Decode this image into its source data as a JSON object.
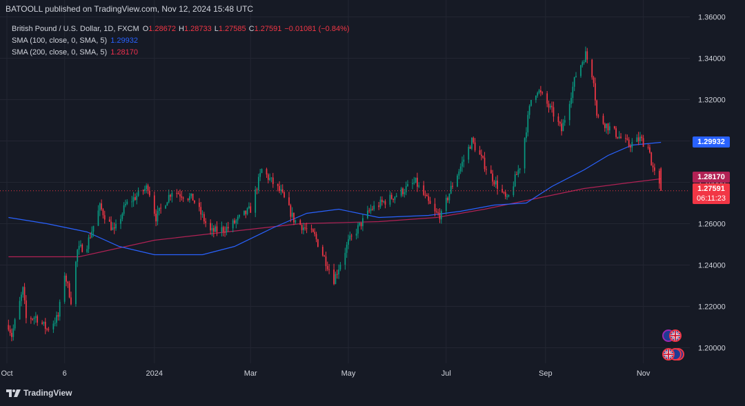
{
  "header": {
    "published": "BATOOLL published on TradingView.com, Nov 12, 2024 15:48 UTC"
  },
  "legend": {
    "symbol": "British Pound / U.S. Dollar, 1D, FXCM",
    "ohlc": [
      {
        "key": "O",
        "value": "1.28672"
      },
      {
        "key": "H",
        "value": "1.28733"
      },
      {
        "key": "L",
        "value": "1.27585"
      },
      {
        "key": "C",
        "value": "1.27591"
      }
    ],
    "change": "−0.01081 (−0.84%)",
    "sma100_label": "SMA (100, close, 0, SMA, 5)",
    "sma100_value": "1.29932",
    "sma200_label": "SMA (200, close, 0, SMA, 5)",
    "sma200_value": "1.28170"
  },
  "price_labels": {
    "sma100": "1.29932",
    "sma200": "1.28170",
    "last": "1.27591",
    "countdown": "06:11:23"
  },
  "footer": {
    "brand": "TradingView"
  },
  "icons": [
    "uk-flag-icon",
    "tradingview-logo-icon"
  ],
  "colors": {
    "background": "#161a25",
    "up": "#089981",
    "down": "#f23645",
    "sma100": "#2962ff",
    "sma200": "#b22255",
    "grid": "#232632"
  },
  "chart_data": {
    "type": "candlestick",
    "y_ticks": [
      "1.36000",
      "1.34000",
      "1.32000",
      "1.30000",
      "1.28000",
      "1.26000",
      "1.24000",
      "1.22000",
      "1.20000"
    ],
    "y_tick_values": [
      1.36,
      1.34,
      1.32,
      1.3,
      1.28,
      1.26,
      1.24,
      1.22,
      1.2
    ],
    "ylim": [
      1.1925,
      1.3615
    ],
    "x_ticks": [
      {
        "label": "Oct",
        "date": "2023-10-01"
      },
      {
        "label": "6",
        "date": "2023-11-06"
      },
      {
        "label": "2024",
        "date": "2024-01-01"
      },
      {
        "label": "Mar",
        "date": "2024-03-01"
      },
      {
        "label": "May",
        "date": "2024-05-01"
      },
      {
        "label": "Jul",
        "date": "2024-07-01"
      },
      {
        "label": "Sep",
        "date": "2024-09-01"
      },
      {
        "label": "Nov",
        "date": "2024-11-01"
      }
    ],
    "xlim": [
      "2023-10-01",
      "2024-11-30"
    ],
    "grid": true,
    "current_price": 1.27591,
    "candle_anchors": [
      [
        "2023-10-02",
        1.211
      ],
      [
        "2023-10-04",
        1.206
      ],
      [
        "2023-10-11",
        1.228
      ],
      [
        "2023-10-13",
        1.214
      ],
      [
        "2023-10-19",
        1.215
      ],
      [
        "2023-10-26",
        1.209
      ],
      [
        "2023-11-02",
        1.215
      ],
      [
        "2023-11-06",
        1.236
      ],
      [
        "2023-11-10",
        1.223
      ],
      [
        "2023-11-14",
        1.247
      ],
      [
        "2023-11-20",
        1.25
      ],
      [
        "2023-11-28",
        1.268
      ],
      [
        "2023-12-07",
        1.256
      ],
      [
        "2023-12-14",
        1.269
      ],
      [
        "2023-12-28",
        1.278
      ],
      [
        "2024-01-02",
        1.263
      ],
      [
        "2024-01-12",
        1.276
      ],
      [
        "2024-01-25",
        1.272
      ],
      [
        "2024-02-05",
        1.256
      ],
      [
        "2024-02-16",
        1.258
      ],
      [
        "2024-03-01",
        1.267
      ],
      [
        "2024-03-08",
        1.286
      ],
      [
        "2024-03-20",
        1.275
      ],
      [
        "2024-03-28",
        1.262
      ],
      [
        "2024-04-10",
        1.254
      ],
      [
        "2024-04-22",
        1.233
      ],
      [
        "2024-05-01",
        1.251
      ],
      [
        "2024-05-15",
        1.267
      ],
      [
        "2024-05-31",
        1.274
      ],
      [
        "2024-06-12",
        1.28
      ],
      [
        "2024-06-24",
        1.265
      ],
      [
        "2024-06-28",
        1.264
      ],
      [
        "2024-07-04",
        1.277
      ],
      [
        "2024-07-17",
        1.3
      ],
      [
        "2024-07-26",
        1.287
      ],
      [
        "2024-08-08",
        1.271
      ],
      [
        "2024-08-16",
        1.288
      ],
      [
        "2024-08-23",
        1.32
      ],
      [
        "2024-08-27",
        1.325
      ],
      [
        "2024-09-06",
        1.313
      ],
      [
        "2024-09-11",
        1.305
      ],
      [
        "2024-09-20",
        1.332
      ],
      [
        "2024-09-26",
        1.342
      ],
      [
        "2024-10-01",
        1.33
      ],
      [
        "2024-10-03",
        1.312
      ],
      [
        "2024-10-10",
        1.307
      ],
      [
        "2024-10-17",
        1.302
      ],
      [
        "2024-10-23",
        1.298
      ],
      [
        "2024-10-30",
        1.301
      ],
      [
        "2024-11-05",
        1.296
      ],
      [
        "2024-11-06",
        1.288
      ],
      [
        "2024-11-12",
        1.27591
      ]
    ],
    "sma100_line": [
      [
        "2023-10-02",
        1.263
      ],
      [
        "2023-10-26",
        1.26
      ],
      [
        "2023-11-20",
        1.256
      ],
      [
        "2023-12-10",
        1.249
      ],
      [
        "2024-01-01",
        1.245
      ],
      [
        "2024-01-31",
        1.245
      ],
      [
        "2024-02-20",
        1.249
      ],
      [
        "2024-03-15",
        1.258
      ],
      [
        "2024-04-05",
        1.265
      ],
      [
        "2024-04-25",
        1.267
      ],
      [
        "2024-05-20",
        1.263
      ],
      [
        "2024-06-20",
        1.264
      ],
      [
        "2024-07-10",
        1.266
      ],
      [
        "2024-07-31",
        1.269
      ],
      [
        "2024-08-20",
        1.27
      ],
      [
        "2024-09-05",
        1.278
      ],
      [
        "2024-09-25",
        1.286
      ],
      [
        "2024-10-10",
        1.293
      ],
      [
        "2024-10-25",
        1.298
      ],
      [
        "2024-11-12",
        1.29932
      ]
    ],
    "sma200_line": [
      [
        "2023-10-02",
        1.244
      ],
      [
        "2023-11-15",
        1.244
      ],
      [
        "2024-01-01",
        1.252
      ],
      [
        "2024-02-15",
        1.256
      ],
      [
        "2024-04-01",
        1.26
      ],
      [
        "2024-05-20",
        1.261
      ],
      [
        "2024-06-25",
        1.263
      ],
      [
        "2024-07-25",
        1.267
      ],
      [
        "2024-08-25",
        1.272
      ],
      [
        "2024-09-25",
        1.277
      ],
      [
        "2024-10-25",
        1.28
      ],
      [
        "2024-11-12",
        1.2817
      ]
    ]
  }
}
